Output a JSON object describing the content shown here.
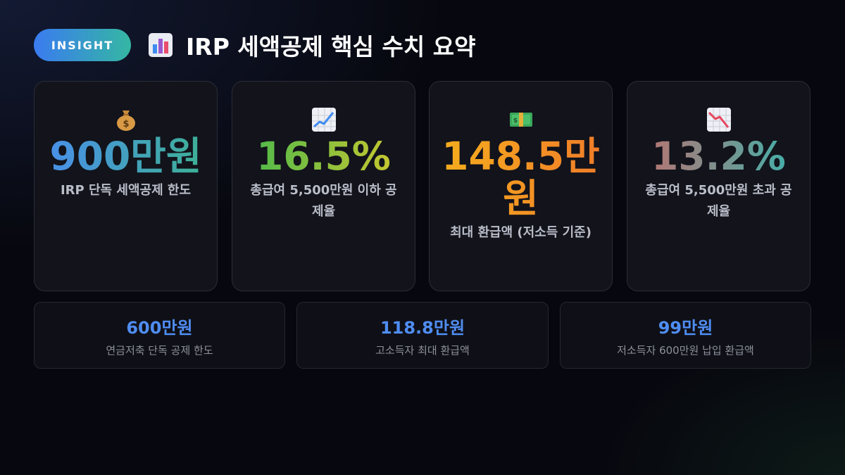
{
  "header": {
    "badge": "INSIGHT",
    "title_icon": "bar-chart-icon",
    "title": "IRP 세액공제 핵심 수치 요약"
  },
  "cards": [
    {
      "icon": "money-bag-icon",
      "value": "900만원",
      "label": "IRP 단독 세액공제 한도"
    },
    {
      "icon": "chart-increasing-icon",
      "value": "16.5%",
      "label": "총급여 5,500만원 이하 공제율"
    },
    {
      "icon": "banknote-icon",
      "value": "148.5만원",
      "label": "최대 환급액 (저소득 기준)"
    },
    {
      "icon": "chart-decreasing-icon",
      "value": "13.2%",
      "label": "총급여 5,500만원 초과 공제율"
    }
  ],
  "mini_cards": [
    {
      "value": "600만원",
      "label": "연금저축 단독 공제 한도"
    },
    {
      "value": "118.8만원",
      "label": "고소득자 최대 환급액"
    },
    {
      "value": "99만원",
      "label": "저소득자 600만원 납입 환급액"
    }
  ],
  "colors": {
    "badge_gradient": [
      "#3a7bf0",
      "#35b7a3"
    ],
    "mini_value": "#4f8df2"
  }
}
